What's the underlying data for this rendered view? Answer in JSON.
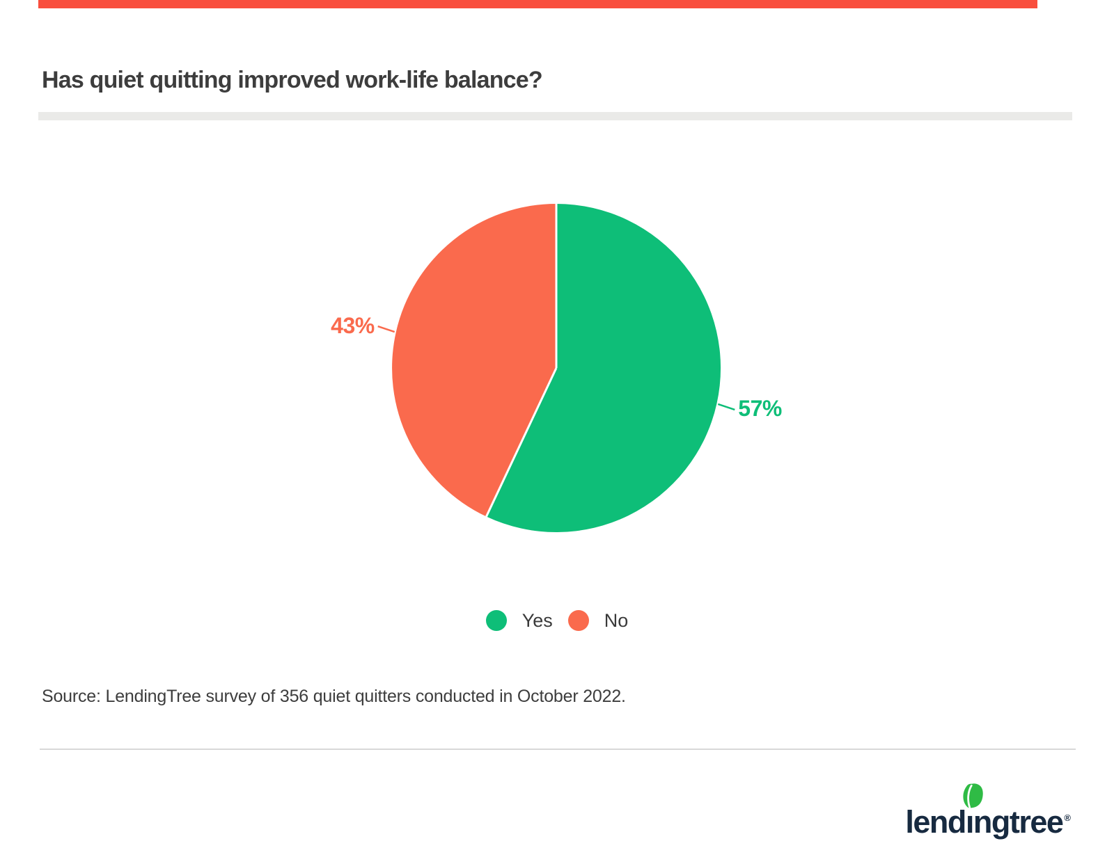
{
  "page": {
    "background": "#ffffff",
    "accent_bar_color": "#f94e3d"
  },
  "header": {
    "title": "Has quiet quitting improved work-life balance?",
    "title_color": "#3d3d3d"
  },
  "chart_data": {
    "type": "pie",
    "title": "Has quiet quitting improved work-life balance?",
    "categories": [
      "Yes",
      "No"
    ],
    "values": [
      57,
      43
    ],
    "slices": [
      {
        "label": "Yes",
        "value": 57,
        "pct_label": "57%",
        "color": "#0ebe78",
        "label_side": "right"
      },
      {
        "label": "No",
        "value": 43,
        "pct_label": "43%",
        "color": "#fa6a4d",
        "label_side": "left"
      }
    ],
    "start_angle_deg": 0,
    "direction": "clockwise",
    "separator_color": "#ffffff",
    "legend_position": "bottom"
  },
  "legend": {
    "items": [
      {
        "label": "Yes",
        "color": "#0ebe78"
      },
      {
        "label": "No",
        "color": "#fa6a4d"
      }
    ]
  },
  "source": {
    "text": "Source: LendingTree survey of 356 quiet quitters conducted in October 2022."
  },
  "footer": {
    "logo": {
      "text_before_i": "lend",
      "dotless_i": "ı",
      "text_after_i": "ngtree",
      "registered": "®",
      "wordmark_color": "#172a40",
      "leaf_color": "#2fbb45"
    }
  }
}
